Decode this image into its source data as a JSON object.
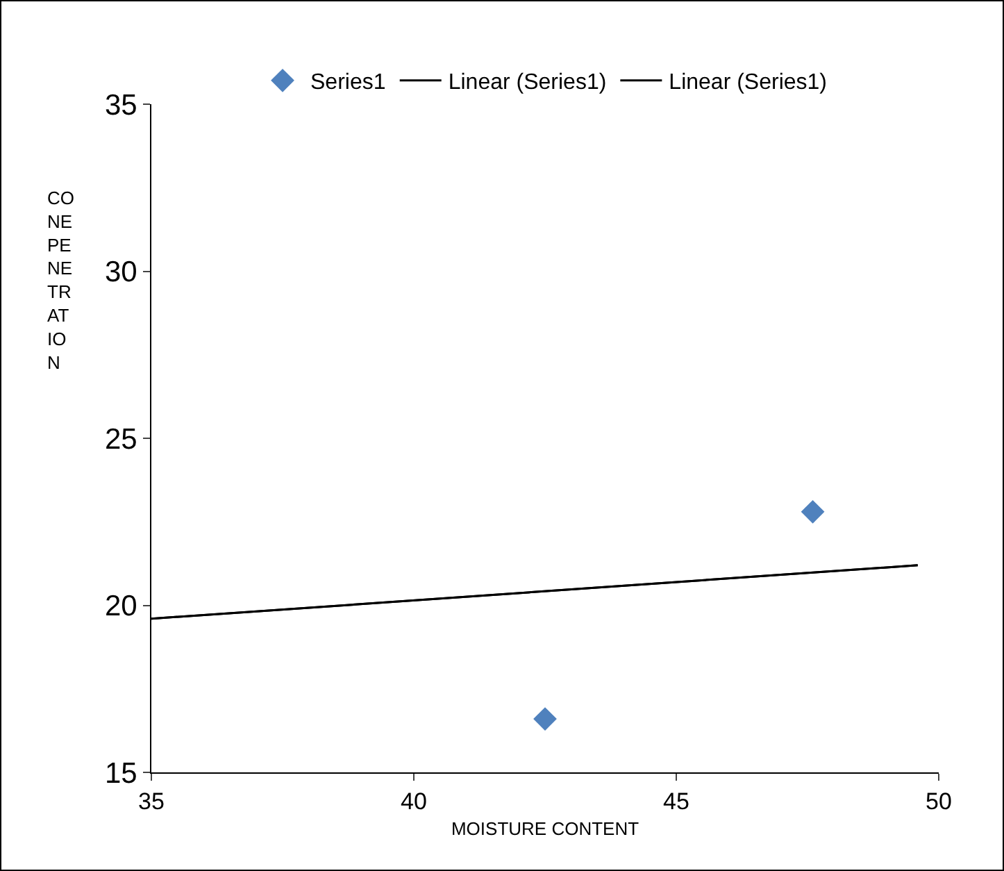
{
  "chart_data": {
    "type": "scatter",
    "xlabel": "MOISTURE CONTENT",
    "ylabel": "CONEPENETRATION",
    "xlim": [
      35,
      50
    ],
    "xticks": [
      35,
      40,
      45,
      50
    ],
    "ylim": [
      15,
      35
    ],
    "yticks": [
      15,
      20,
      25,
      30,
      35
    ],
    "grid": false,
    "legend": "top",
    "marker": "diamond",
    "series": [
      {
        "name": "Series1",
        "color": "#4f81bd",
        "x": [
          42.5,
          47.6
        ],
        "values": [
          16.6,
          22.8
        ]
      },
      {
        "name": "Linear (Series1)",
        "type": "line",
        "marker": "none",
        "color": "#000000",
        "x": [
          35,
          49.6
        ],
        "values": [
          19.6,
          21.2
        ]
      },
      {
        "name": "Linear (Series1)",
        "type": "line",
        "marker": "none",
        "color": "#000000",
        "x": [
          35,
          49.6
        ],
        "values": [
          19.6,
          21.2
        ]
      }
    ]
  }
}
